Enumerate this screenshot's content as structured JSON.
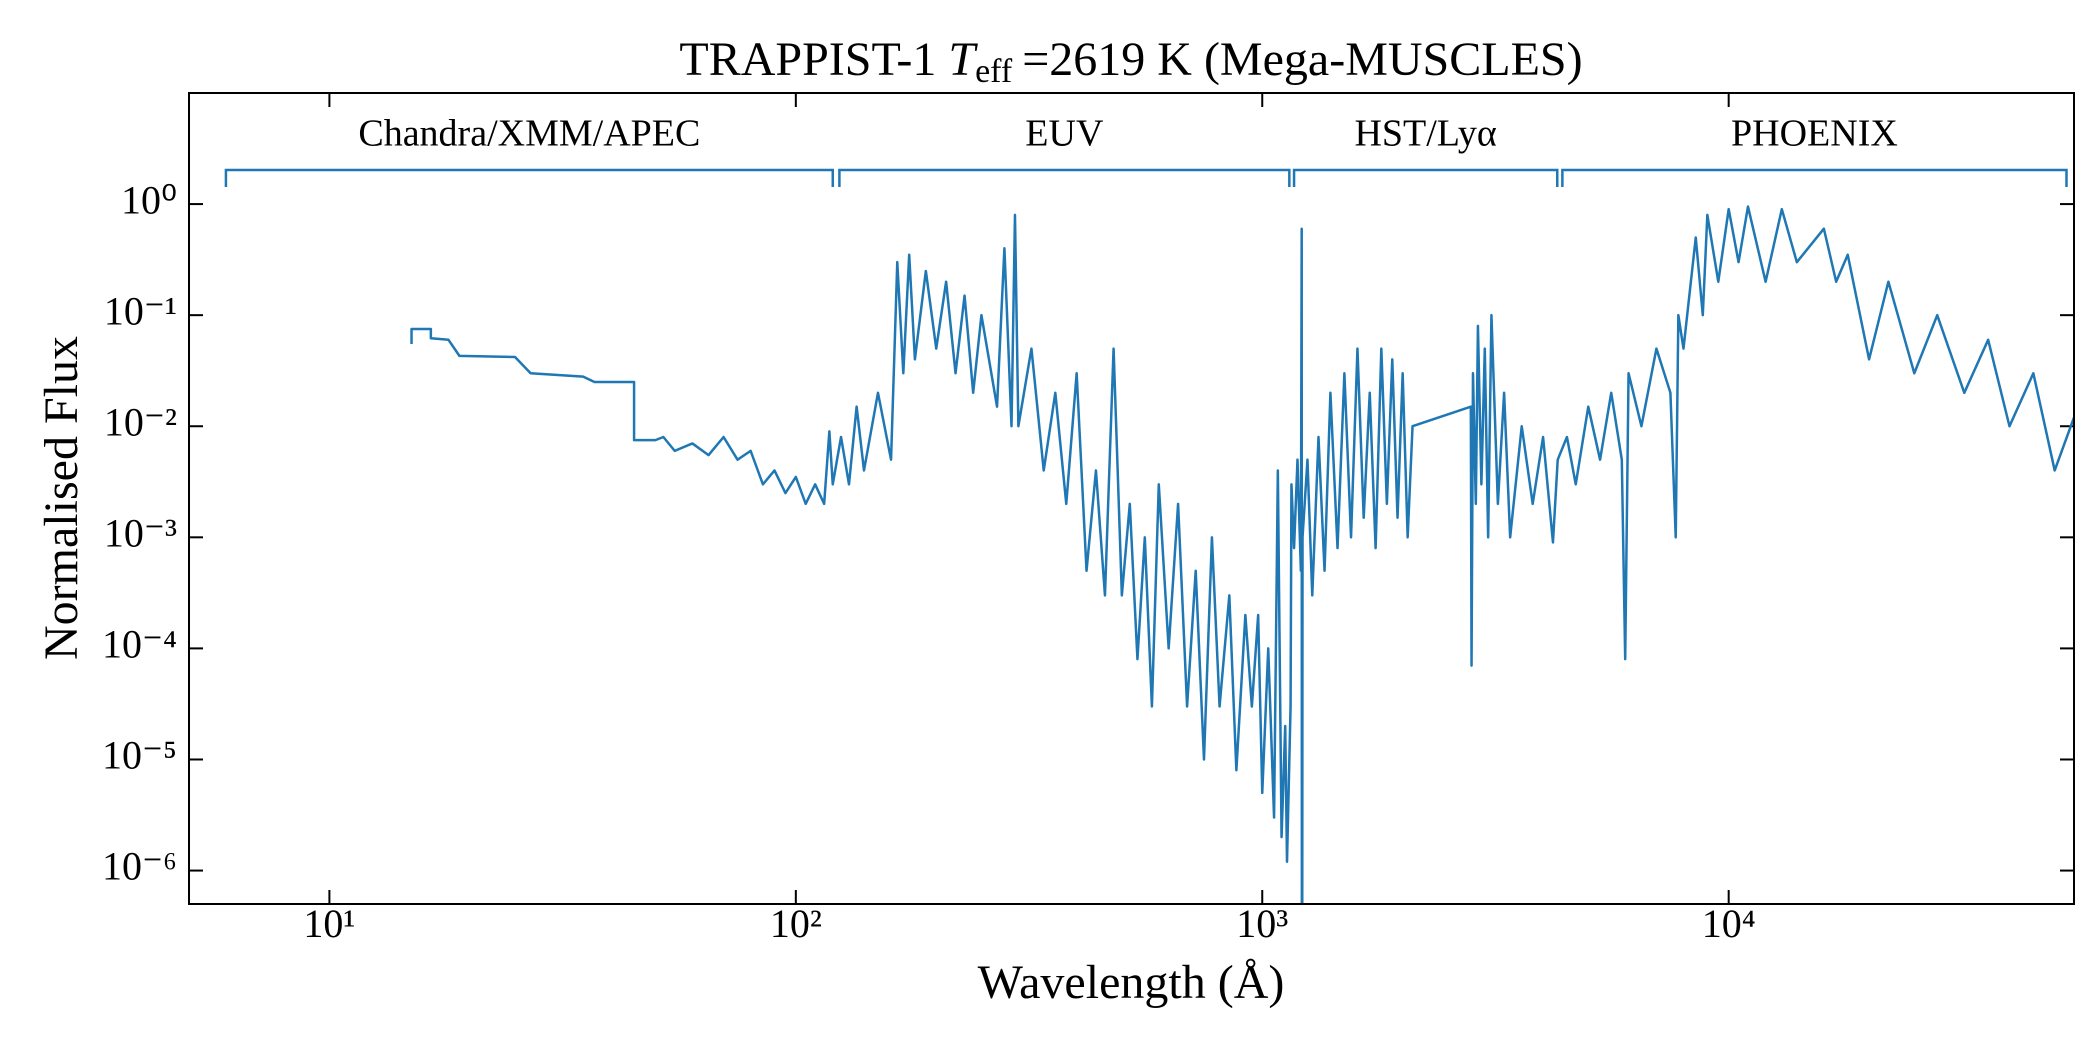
{
  "chart_data": {
    "type": "line",
    "title": {
      "prefix": "TRAPPIST-1",
      "symbol": "T",
      "subscript": "eff",
      "suffix": "=2619 K (Mega-MUSCLES)"
    },
    "xlabel": "Wavelength (Å)",
    "ylabel": "Normalised Flux",
    "xscale": "log",
    "yscale": "log",
    "color": "#1f77b4",
    "xlim": [
      5,
      55000
    ],
    "ylim": [
      5e-07,
      10
    ],
    "xticks": [
      {
        "value": 10,
        "label": "10¹"
      },
      {
        "value": 100,
        "label": "10²"
      },
      {
        "value": 1000,
        "label": "10³"
      },
      {
        "value": 10000,
        "label": "10⁴"
      }
    ],
    "yticks": [
      {
        "value": 1e-06,
        "label": "10⁻⁶"
      },
      {
        "value": 1e-05,
        "label": "10⁻⁵"
      },
      {
        "value": 0.0001,
        "label": "10⁻⁴"
      },
      {
        "value": 0.001,
        "label": "10⁻³"
      },
      {
        "value": 0.01,
        "label": "10⁻²"
      },
      {
        "value": 0.1,
        "label": "10⁻¹"
      },
      {
        "value": 1,
        "label": "10⁰"
      }
    ],
    "regions": [
      {
        "label": "Chandra/XMM/APEC",
        "range": [
          6,
          120
        ]
      },
      {
        "label": "EUV",
        "range": [
          124,
          1143
        ]
      },
      {
        "label": "HST/Lyα",
        "range": [
          1170,
          4290
        ]
      },
      {
        "label": "PHOENIX",
        "range": [
          4400,
          53000
        ]
      }
    ],
    "x": [
      15,
      15,
      16.5,
      16.5,
      18,
      19,
      25,
      27,
      35,
      37,
      45,
      45,
      50,
      52,
      55,
      60,
      65,
      70,
      75,
      80,
      85,
      90,
      95,
      100,
      105,
      110,
      115,
      118,
      120,
      125,
      130,
      135,
      140,
      150,
      160,
      165,
      170,
      175,
      180,
      190,
      200,
      210,
      220,
      230,
      240,
      250,
      270,
      280,
      290,
      295,
      300,
      320,
      340,
      360,
      380,
      400,
      420,
      440,
      460,
      480,
      500,
      520,
      540,
      560,
      580,
      600,
      630,
      660,
      690,
      720,
      750,
      780,
      810,
      850,
      880,
      920,
      950,
      980,
      1000,
      1030,
      1060,
      1080,
      1100,
      1120,
      1130,
      1150,
      1155,
      1170,
      1190,
      1210,
      1215,
      1216,
      1218,
      1220,
      1250,
      1280,
      1320,
      1360,
      1400,
      1450,
      1500,
      1550,
      1600,
      1650,
      1700,
      1750,
      1800,
      1850,
      1900,
      1950,
      2000,
      2050,
      2100,
      2800,
      2810,
      2830,
      2870,
      2900,
      2950,
      3000,
      3050,
      3100,
      3200,
      3300,
      3400,
      3600,
      3800,
      4000,
      4200,
      4300,
      4500,
      4700,
      5000,
      5300,
      5600,
      5900,
      6000,
      6100,
      6500,
      7000,
      7500,
      7700,
      7800,
      8000,
      8500,
      8800,
      9000,
      9500,
      10000,
      10500,
      11000,
      12000,
      13000,
      14000,
      16000,
      17000,
      18000,
      20000,
      22000,
      25000,
      28000,
      32000,
      36000,
      40000,
      45000,
      50000,
      55000
    ],
    "values": [
      0.055,
      0.075,
      0.075,
      0.062,
      0.06,
      0.043,
      0.042,
      0.03,
      0.028,
      0.025,
      0.025,
      0.0075,
      0.0075,
      0.008,
      0.006,
      0.007,
      0.0055,
      0.008,
      0.005,
      0.006,
      0.003,
      0.004,
      0.0025,
      0.0035,
      0.002,
      0.003,
      0.002,
      0.009,
      0.003,
      0.008,
      0.003,
      0.015,
      0.004,
      0.02,
      0.005,
      0.3,
      0.03,
      0.35,
      0.04,
      0.25,
      0.05,
      0.2,
      0.03,
      0.15,
      0.02,
      0.1,
      0.015,
      0.4,
      0.01,
      0.8,
      0.01,
      0.05,
      0.004,
      0.02,
      0.002,
      0.03,
      0.0005,
      0.004,
      0.0003,
      0.05,
      0.0003,
      0.002,
      8e-05,
      0.001,
      3e-05,
      0.003,
      0.0001,
      0.002,
      3e-05,
      0.0005,
      1e-05,
      0.001,
      3e-05,
      0.0003,
      8e-06,
      0.0002,
      3e-05,
      0.0002,
      5e-06,
      0.0001,
      3e-06,
      0.004,
      2e-06,
      2e-05,
      1.2e-06,
      3e-05,
      0.003,
      0.0008,
      0.005,
      0.0005,
      0.6,
      1e-07,
      1e-07,
      0.001,
      0.005,
      0.0003,
      0.008,
      0.0005,
      0.02,
      0.0008,
      0.03,
      0.001,
      0.05,
      0.0015,
      0.02,
      0.0008,
      0.05,
      0.002,
      0.04,
      0.0015,
      0.03,
      0.001,
      0.01,
      0.015,
      7e-05,
      0.03,
      0.002,
      0.08,
      0.003,
      0.05,
      0.001,
      0.1,
      0.002,
      0.02,
      0.001,
      0.01,
      0.002,
      0.008,
      0.0009,
      0.005,
      0.008,
      0.003,
      0.015,
      0.005,
      0.02,
      0.005,
      8e-05,
      0.03,
      0.01,
      0.05,
      0.02,
      0.001,
      0.1,
      0.05,
      0.5,
      0.1,
      0.8,
      0.2,
      0.9,
      0.3,
      0.95,
      0.2,
      0.9,
      0.3,
      0.6,
      0.2,
      0.35,
      0.04,
      0.2,
      0.03,
      0.1,
      0.02,
      0.06,
      0.01,
      0.03,
      0.004,
      0.012
    ]
  }
}
